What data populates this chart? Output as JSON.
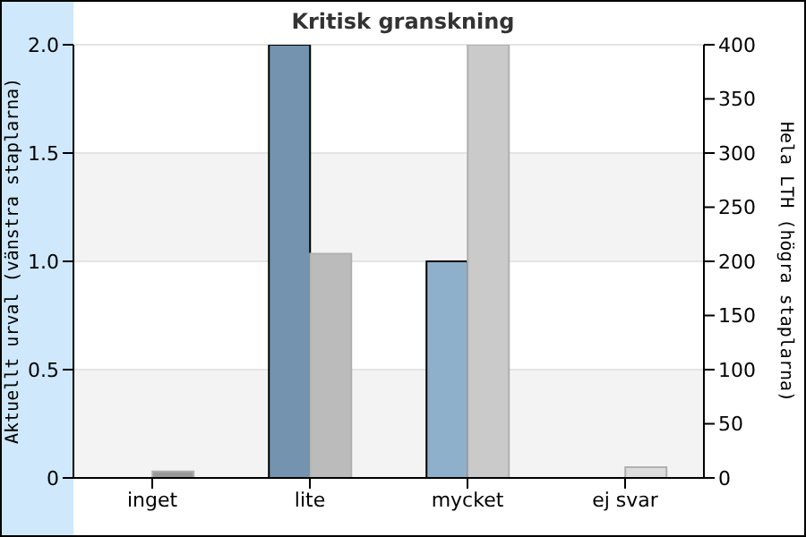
{
  "chart_data": {
    "type": "bar",
    "title": "Kritisk granskning",
    "ylabel": "Aktuellt urval (vänstra staplarna)",
    "y2label": "Hela LTH (högra staplarna)",
    "categories": [
      "inget",
      "lite",
      "mycket",
      "ej svar"
    ],
    "series": [
      {
        "colors": [
          "#7393ae",
          "#7393ae",
          "#8fb0cb",
          "#8fb0cb"
        ],
        "values": [
          0,
          2,
          1,
          0
        ]
      },
      {
        "colors": [
          "#999999",
          "#bbbbbb",
          "#cacaca",
          "#dddddd"
        ],
        "values": [
          6,
          207,
          400,
          10
        ],
        "axis": "y2"
      }
    ],
    "ylim": [
      0,
      2
    ],
    "yticks": [
      0,
      {
        "value": 0.5,
        "label": "0.5"
      },
      {
        "value": 1,
        "label": "1.0"
      },
      {
        "value": 1.5,
        "label": "1.5"
      },
      {
        "value": 2,
        "label": "2.0"
      }
    ],
    "y2lim": [
      0,
      400
    ],
    "y2ticks": [
      0,
      50,
      100,
      150,
      200,
      250,
      300,
      350,
      400
    ],
    "grid": "y"
  }
}
